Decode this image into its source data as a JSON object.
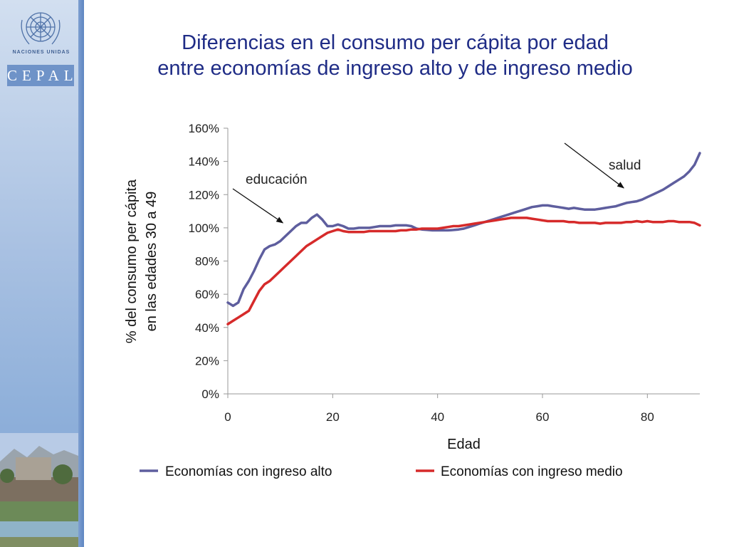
{
  "branding": {
    "un_label": "NACIONES UNIDAS",
    "cepal_label": "CEPAL"
  },
  "title": {
    "line1": "Diferencias en el consumo per cápita por edad",
    "line2": "entre economías de ingreso alto y de ingreso medio"
  },
  "colors": {
    "title": "#1f2c86",
    "high": "#5e5e9e",
    "mid": "#d62a2a"
  },
  "chart_data": {
    "type": "line",
    "xlabel": "Edad",
    "ylabel_lines": [
      "% del consumo per cápita",
      "en las edades 30 a 49"
    ],
    "x_range": [
      0,
      90
    ],
    "y_range": [
      0,
      160
    ],
    "x_ticks": [
      0,
      20,
      40,
      60,
      80
    ],
    "y_ticks": [
      0,
      20,
      40,
      60,
      80,
      100,
      120,
      140,
      160
    ],
    "x_tick_labels": [
      "0",
      "20",
      "40",
      "60",
      "80"
    ],
    "y_tick_labels": [
      "0%",
      "20%",
      "40%",
      "60%",
      "80%",
      "100%",
      "120%",
      "140%",
      "160%"
    ],
    "legend_position": "bottom",
    "series": [
      {
        "name": "Economías con ingreso alto",
        "color": "#5e5e9e",
        "x": [
          0,
          1,
          2,
          3,
          4,
          5,
          6,
          7,
          8,
          9,
          10,
          11,
          12,
          13,
          14,
          15,
          16,
          17,
          18,
          19,
          20,
          21,
          22,
          23,
          24,
          25,
          26,
          27,
          28,
          29,
          30,
          31,
          32,
          33,
          34,
          35,
          36,
          37,
          38,
          39,
          40,
          41,
          42,
          43,
          44,
          45,
          46,
          47,
          48,
          49,
          50,
          51,
          52,
          53,
          54,
          55,
          56,
          57,
          58,
          59,
          60,
          61,
          62,
          63,
          64,
          65,
          66,
          67,
          68,
          69,
          70,
          71,
          72,
          73,
          74,
          75,
          76,
          77,
          78,
          79,
          80,
          81,
          82,
          83,
          84,
          85,
          86,
          87,
          88,
          89,
          90
        ],
        "y": [
          55,
          53,
          55,
          63,
          68,
          74,
          81,
          87,
          89,
          90,
          92,
          95,
          98,
          101,
          103,
          103,
          106,
          108,
          105,
          101,
          101,
          102,
          101,
          99.5,
          99.5,
          100,
          100,
          100,
          100.5,
          101,
          101,
          101,
          101.5,
          101.5,
          101.5,
          101,
          99.5,
          99,
          98.8,
          98.5,
          98.5,
          98.5,
          98.5,
          98.7,
          99,
          99.5,
          100.5,
          101.5,
          102.5,
          103.5,
          104.5,
          105.5,
          106.5,
          107.5,
          108.5,
          109.5,
          110.5,
          111.5,
          112.5,
          113,
          113.5,
          113.5,
          113,
          112.5,
          112,
          111.5,
          112,
          111.5,
          111,
          111,
          111,
          111.5,
          112,
          112.5,
          113,
          114,
          115,
          115.5,
          116,
          117,
          118.5,
          120,
          121.5,
          123,
          125,
          127,
          129,
          131,
          134,
          138,
          145
        ]
      },
      {
        "name": "Economías con ingreso medio",
        "color": "#d62a2a",
        "x": [
          0,
          1,
          2,
          3,
          4,
          5,
          6,
          7,
          8,
          9,
          10,
          11,
          12,
          13,
          14,
          15,
          16,
          17,
          18,
          19,
          20,
          21,
          22,
          23,
          24,
          25,
          26,
          27,
          28,
          29,
          30,
          31,
          32,
          33,
          34,
          35,
          36,
          37,
          38,
          39,
          40,
          41,
          42,
          43,
          44,
          45,
          46,
          47,
          48,
          49,
          50,
          51,
          52,
          53,
          54,
          55,
          56,
          57,
          58,
          59,
          60,
          61,
          62,
          63,
          64,
          65,
          66,
          67,
          68,
          69,
          70,
          71,
          72,
          73,
          74,
          75,
          76,
          77,
          78,
          79,
          80,
          81,
          82,
          83,
          84,
          85,
          86,
          87,
          88,
          89,
          90
        ],
        "y": [
          42,
          44,
          46,
          48,
          50,
          56,
          62,
          66,
          68,
          71,
          74,
          77,
          80,
          83,
          86,
          89,
          91,
          93,
          95,
          97,
          98,
          99,
          98,
          97.5,
          97.5,
          97.5,
          97.5,
          98,
          98,
          98,
          98,
          98,
          98,
          98.5,
          98.5,
          99,
          99,
          99.5,
          99.5,
          99.5,
          99.5,
          100,
          100.5,
          101,
          101,
          101.5,
          102,
          102.5,
          103,
          103.5,
          104,
          104.5,
          105,
          105.5,
          106,
          106,
          106,
          106,
          105.5,
          105,
          104.5,
          104,
          104,
          104,
          104,
          103.5,
          103.5,
          103,
          103,
          103,
          103,
          102.5,
          103,
          103,
          103,
          103,
          103.5,
          103.5,
          104,
          103.5,
          104,
          103.5,
          103.5,
          103.5,
          104,
          104,
          103.5,
          103.5,
          103.5,
          103,
          101.5
        ]
      }
    ],
    "annotations": [
      {
        "text": "educación",
        "x": 10.5,
        "y": 103
      },
      {
        "text": "salud",
        "x": 75.5,
        "y": 124
      }
    ]
  }
}
